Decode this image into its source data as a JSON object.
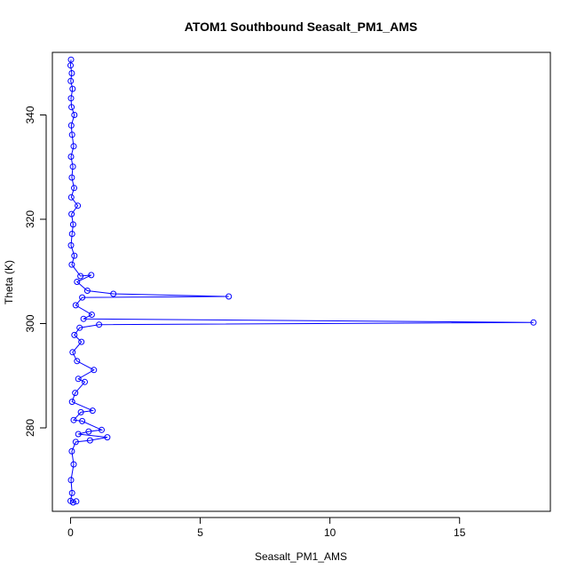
{
  "chart_data": {
    "type": "scatter",
    "title": "ATOM1 Southbound Seasalt_PM1_AMS",
    "xlabel": "Seasalt_PM1_AMS",
    "ylabel": "Theta (K)",
    "xlim": [
      -0.7,
      18.5
    ],
    "ylim": [
      264,
      352
    ],
    "xticks": [
      0,
      5,
      10,
      15
    ],
    "yticks": [
      280,
      300,
      320,
      340
    ],
    "grid": false,
    "legend": "none",
    "colors": {
      "points": "#0000ff",
      "line": "#0000ff",
      "axis": "#000000"
    },
    "series": [
      {
        "points": [
          [
            0.02,
            350.6
          ],
          [
            0.0,
            349.5
          ],
          [
            0.05,
            348.0
          ],
          [
            0.01,
            346.5
          ],
          [
            0.08,
            345.0
          ],
          [
            0.02,
            343.2
          ],
          [
            0.04,
            341.5
          ],
          [
            0.15,
            340.0
          ],
          [
            0.03,
            338.0
          ],
          [
            0.06,
            336.2
          ],
          [
            0.12,
            334.0
          ],
          [
            0.02,
            332.0
          ],
          [
            0.09,
            330.1
          ],
          [
            0.05,
            328.0
          ],
          [
            0.14,
            326.0
          ],
          [
            0.03,
            324.2
          ],
          [
            0.28,
            322.6
          ],
          [
            0.04,
            321.0
          ],
          [
            0.1,
            319.0
          ],
          [
            0.06,
            317.2
          ],
          [
            0.02,
            315.0
          ],
          [
            0.15,
            313.0
          ],
          [
            0.05,
            311.3
          ],
          [
            0.38,
            309.1
          ],
          [
            0.8,
            309.3
          ],
          [
            0.25,
            308.0
          ],
          [
            0.65,
            306.3
          ],
          [
            1.65,
            305.7
          ],
          [
            6.1,
            305.2
          ],
          [
            0.45,
            305.0
          ],
          [
            0.2,
            303.5
          ],
          [
            0.82,
            301.7
          ],
          [
            0.5,
            300.9
          ],
          [
            17.85,
            300.2
          ],
          [
            1.1,
            299.8
          ],
          [
            0.35,
            299.2
          ],
          [
            0.15,
            297.8
          ],
          [
            0.42,
            296.5
          ],
          [
            0.08,
            294.5
          ],
          [
            0.25,
            292.8
          ],
          [
            0.9,
            291.1
          ],
          [
            0.3,
            289.4
          ],
          [
            0.55,
            288.8
          ],
          [
            0.18,
            286.7
          ],
          [
            0.06,
            285.0
          ],
          [
            0.85,
            283.3
          ],
          [
            0.4,
            283.0
          ],
          [
            0.12,
            281.5
          ],
          [
            0.45,
            281.3
          ],
          [
            1.2,
            279.6
          ],
          [
            0.7,
            279.3
          ],
          [
            0.3,
            278.8
          ],
          [
            1.42,
            278.2
          ],
          [
            0.75,
            277.6
          ],
          [
            0.2,
            277.3
          ],
          [
            0.05,
            275.5
          ],
          [
            0.12,
            273.0
          ],
          [
            0.02,
            270.0
          ],
          [
            0.06,
            267.5
          ],
          [
            0.0,
            266.0
          ],
          [
            0.1,
            265.7
          ],
          [
            0.22,
            265.9
          ]
        ]
      }
    ]
  }
}
